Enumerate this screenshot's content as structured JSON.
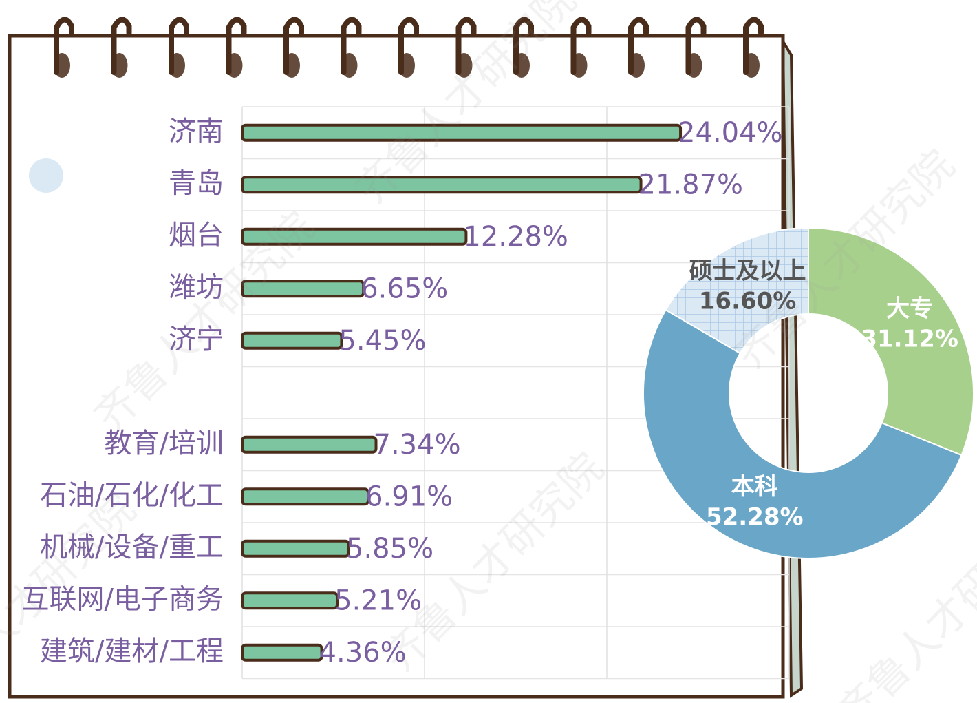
{
  "chart_data": [
    {
      "type": "bar",
      "orientation": "horizontal",
      "categories": [
        "济南",
        "青岛",
        "烟台",
        "潍坊",
        "济宁",
        null,
        "教育/培训",
        "石油/石化/化工",
        "机械/设备/重工",
        "互联网/电子商务",
        "建筑/建材/工程"
      ],
      "values": [
        24.04,
        21.87,
        12.28,
        6.65,
        5.45,
        null,
        7.34,
        6.91,
        5.85,
        5.21,
        4.36
      ],
      "value_labels": [
        "24.04%",
        "21.87%",
        "12.28%",
        "6.65%",
        "5.45%",
        null,
        "7.34%",
        "6.91%",
        "5.85%",
        "5.21%",
        "4.36%"
      ],
      "color": "#7cc5a0",
      "xlim": [
        0,
        30
      ],
      "xticks": [
        0,
        10,
        20,
        30
      ],
      "grid": true
    },
    {
      "type": "pie",
      "donut": true,
      "categories": [
        "大专",
        "本科",
        "硕士及以上"
      ],
      "values": [
        31.12,
        52.28,
        16.6
      ],
      "value_labels": [
        "31.12%",
        "52.28%",
        "16.60%"
      ],
      "colors": [
        "#a8d08d",
        "#6aa6c8",
        "#dbe9f5"
      ]
    }
  ],
  "watermark": "齐鲁人才研究院"
}
